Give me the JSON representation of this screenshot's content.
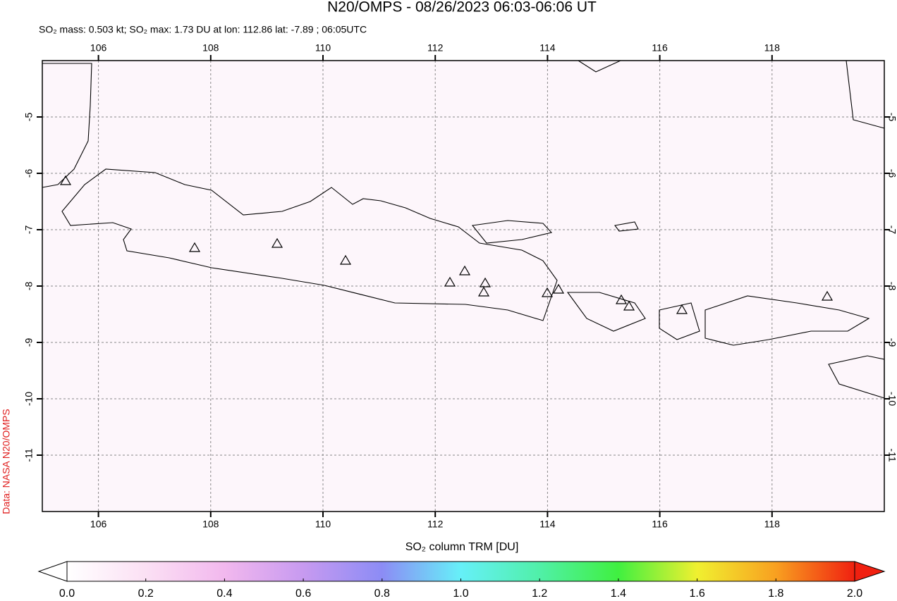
{
  "title": "N20/OMPS - 08/26/2023 06:03-06:06 UT",
  "subtitle": "SO₂ mass: 0.503 kt; SO₂ max: 1.73 DU at lon: 112.86 lat: -7.89 ; 06:05UTC",
  "credit": "Data: NASA N20/OMPS",
  "map": {
    "xlim": [
      105,
      120
    ],
    "ylim": [
      -12,
      -4
    ],
    "xticks": [
      106,
      108,
      110,
      112,
      114,
      116,
      118
    ],
    "yticks": [
      -5,
      -6,
      -7,
      -8,
      -9,
      -10,
      -11
    ]
  },
  "colorbar": {
    "label": "SO₂ column TRM [DU]",
    "range": [
      0,
      2
    ],
    "ticks": [
      {
        "value": 0,
        "label": "0.0"
      },
      {
        "value": 0.2,
        "label": "0.2"
      },
      {
        "value": 0.4,
        "label": "0.4"
      },
      {
        "value": 0.6,
        "label": "0.6"
      },
      {
        "value": 0.8,
        "label": "0.8"
      },
      {
        "value": 1,
        "label": "1.0"
      },
      {
        "value": 1.2,
        "label": "1.2"
      },
      {
        "value": 1.4,
        "label": "1.4"
      },
      {
        "value": 1.6,
        "label": "1.6"
      },
      {
        "value": 1.8,
        "label": "1.8"
      },
      {
        "value": 2,
        "label": "2.0"
      }
    ]
  }
}
